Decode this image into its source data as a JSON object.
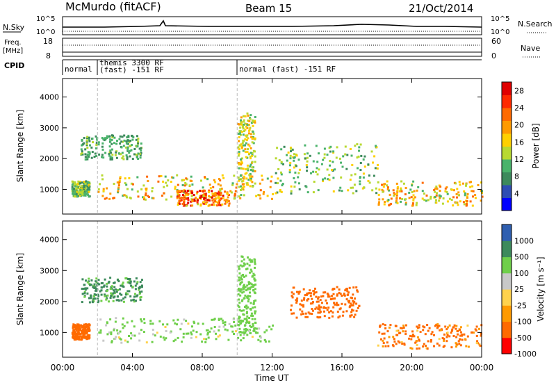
{
  "header": {
    "station": "McMurdo (fitACF)",
    "beam": "Beam 15",
    "date": "21/Oct/2014"
  },
  "panels_left": {
    "nsky": "N.Sky",
    "nsky_top": "10^5",
    "nsky_bot": "10^0",
    "freq": "Freq.",
    "freq_unit": "[MHz]",
    "freq_top": "18",
    "freq_bot": "8",
    "cpid": "CPID"
  },
  "panels_right": {
    "nsearch": "N.Search",
    "nsearch_top": "10^5",
    "nsearch_bot": "10^0",
    "nave_top": "60",
    "nave_bot": "0",
    "nave": "Nave"
  },
  "cpid_segments": [
    {
      "text": "normal",
      "start": 0.0
    },
    {
      "text": "themis 3300 RF",
      "start": 2.0
    },
    {
      "text": "(fast) -151 RF",
      "start": 2.0
    },
    {
      "text": "normal (fast) -151 RF",
      "start": 10.0
    }
  ],
  "colors": {
    "power": [
      "#0000ff",
      "#2e4db3",
      "#3d8a5c",
      "#4ab36b",
      "#b8d931",
      "#ffd000",
      "#ff9a00",
      "#ff6a00",
      "#ff2a00",
      "#e00000"
    ],
    "velocity": [
      "#ff0000",
      "#ff6a00",
      "#ff9a00",
      "#ffd24d",
      "#c8c8c8",
      "#6fcf4a",
      "#3d8a5c",
      "#2f5fb0"
    ]
  },
  "chart_data": [
    {
      "type": "heatmap",
      "title": "",
      "xlabel": "Time UT",
      "ylabel": "Slant Range [km]",
      "x_ticks": [
        "00:00",
        "04:00",
        "08:00",
        "12:00",
        "16:00",
        "20:00",
        "00:00"
      ],
      "y_ticks": [
        1000,
        2000,
        3000,
        4000
      ],
      "ylim": [
        200,
        4600
      ],
      "xlim_hours": [
        0,
        24
      ],
      "colorbar": {
        "label": "Power [dB]",
        "ticks": [
          4,
          8,
          12,
          16,
          20,
          24,
          28
        ],
        "range": [
          0,
          30
        ]
      },
      "echo_regions": [
        {
          "t0": 0.5,
          "t1": 1.5,
          "r0": 800,
          "r1": 1300,
          "intensity": 0.5
        },
        {
          "t0": 1.0,
          "t1": 4.5,
          "r0": 2000,
          "r1": 2800,
          "intensity": 0.4
        },
        {
          "t0": 2.0,
          "t1": 12.0,
          "r0": 700,
          "r1": 1500,
          "intensity": 0.7
        },
        {
          "t0": 6.5,
          "t1": 9.5,
          "r0": 500,
          "r1": 1000,
          "intensity": 0.95
        },
        {
          "t0": 10.0,
          "t1": 11.0,
          "r0": 1000,
          "r1": 3500,
          "intensity": 0.6
        },
        {
          "t0": 12.0,
          "t1": 18.0,
          "r0": 900,
          "r1": 2500,
          "intensity": 0.5
        },
        {
          "t0": 18.0,
          "t1": 24.0,
          "r0": 500,
          "r1": 1300,
          "intensity": 0.7
        }
      ]
    },
    {
      "type": "heatmap",
      "title": "",
      "xlabel": "Time UT",
      "ylabel": "Slant Range [km]",
      "x_ticks": [
        "00:00",
        "04:00",
        "08:00",
        "12:00",
        "16:00",
        "20:00",
        "00:00"
      ],
      "y_ticks": [
        1000,
        2000,
        3000,
        4000
      ],
      "ylim": [
        200,
        4600
      ],
      "xlim_hours": [
        0,
        24
      ],
      "colorbar": {
        "label": "Velocity [m s⁻¹]",
        "ticks": [
          1000,
          500,
          100,
          25,
          -25,
          -100,
          -500,
          -1000
        ]
      },
      "echo_regions": [
        {
          "t0": 0.5,
          "t1": 1.5,
          "r0": 800,
          "r1": 1300,
          "vel": -300
        },
        {
          "t0": 1.0,
          "t1": 4.5,
          "r0": 2000,
          "r1": 2800,
          "vel": 600
        },
        {
          "t0": 2.0,
          "t1": 12.0,
          "r0": 700,
          "r1": 1500,
          "vel": 200
        },
        {
          "t0": 10.0,
          "t1": 11.0,
          "r0": 1000,
          "r1": 3500,
          "vel": 300
        },
        {
          "t0": 13.0,
          "t1": 17.0,
          "r0": 1500,
          "r1": 2500,
          "vel": -300
        },
        {
          "t0": 18.0,
          "t1": 24.0,
          "r0": 500,
          "r1": 1300,
          "vel": -200
        }
      ]
    }
  ]
}
